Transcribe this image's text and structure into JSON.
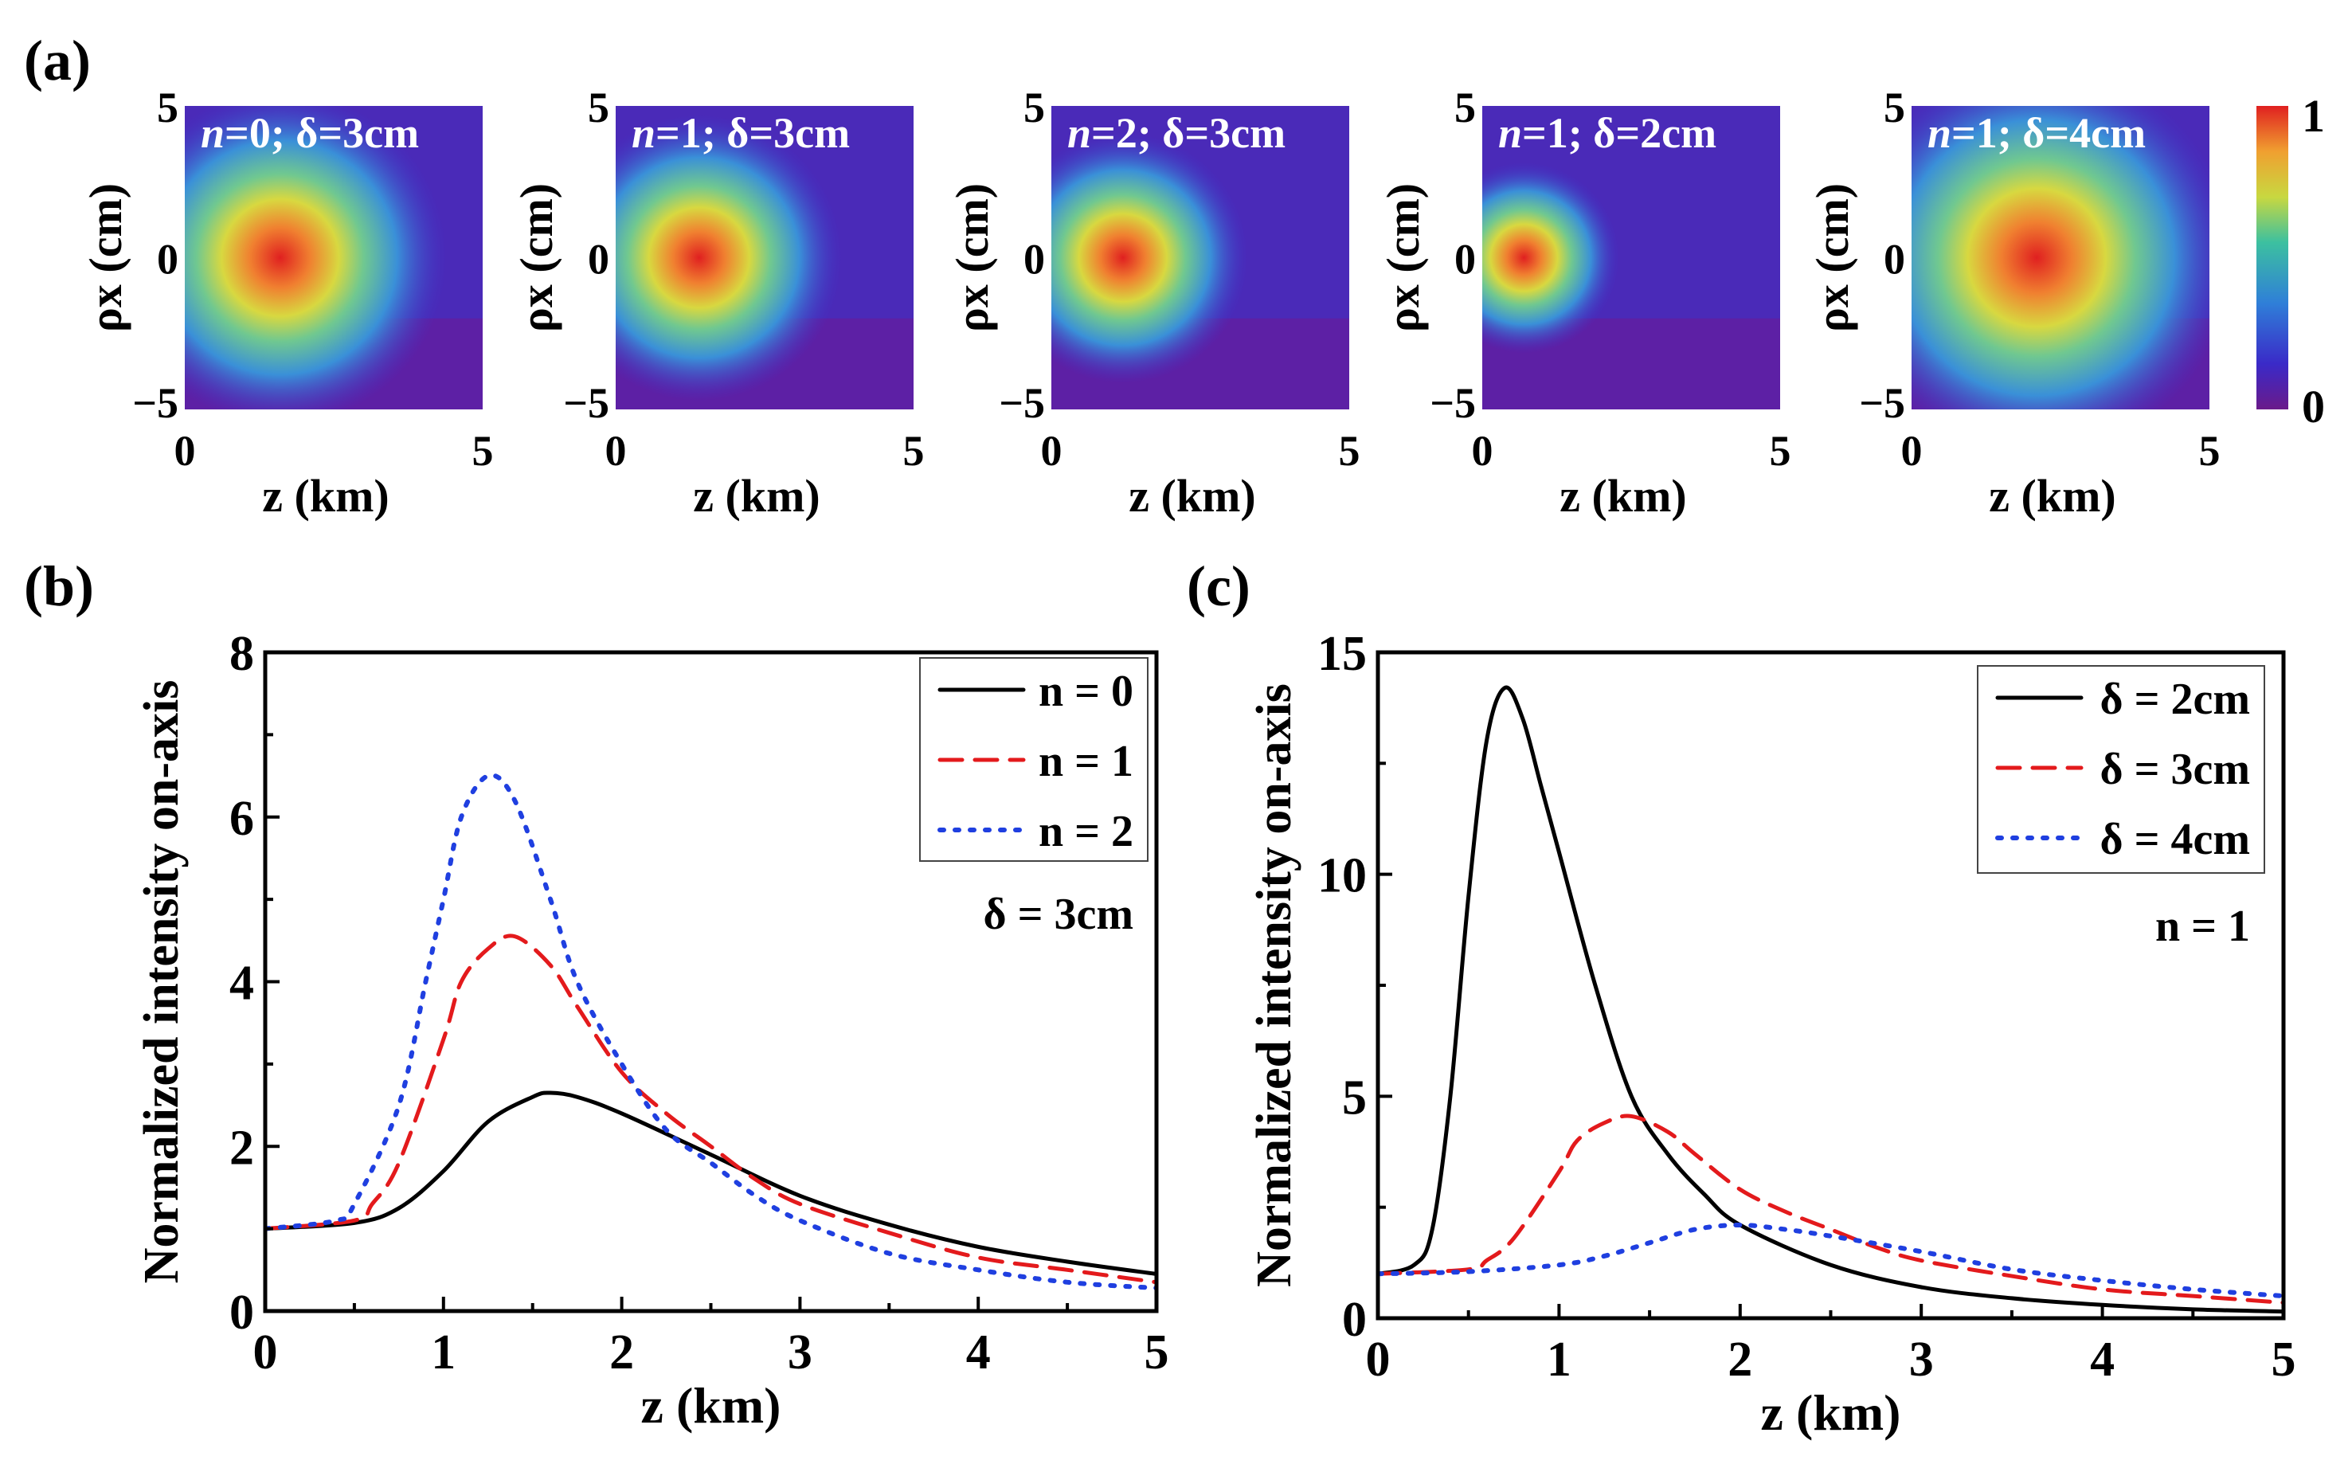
{
  "panel_labels": {
    "a": "(a)",
    "b": "(b)",
    "c": "(c)"
  },
  "colors": {
    "black": "#000000",
    "red": "#e31a1c",
    "blue": "#1f3fe0"
  },
  "chart_data": [
    {
      "type": "heatmap",
      "id": "a",
      "xlabel": "z (km)",
      "ylabel": "ρx (cm)",
      "xlim": [
        0,
        5
      ],
      "ylim": [
        -5,
        5
      ],
      "xticks": [
        "0",
        "5"
      ],
      "yticks": [
        "5",
        "0",
        "−5"
      ],
      "colorbar": {
        "min": "0",
        "max": "1"
      },
      "panels": [
        {
          "n_label": "n",
          "rest": "=0; δ=3cm",
          "peak_z": 1.6,
          "peak_rho": 0,
          "spread": 1.0
        },
        {
          "n_label": "n",
          "rest": "=1; δ=3cm",
          "peak_z": 1.4,
          "peak_rho": 0,
          "spread": 0.8
        },
        {
          "n_label": "n",
          "rest": "=2; δ=3cm",
          "peak_z": 1.2,
          "peak_rho": 0,
          "spread": 0.65
        },
        {
          "n_label": "n",
          "rest": "=1; δ=2cm",
          "peak_z": 0.7,
          "peak_rho": 0,
          "spread": 0.4
        },
        {
          "n_label": "n",
          "rest": "=1; δ=4cm",
          "peak_z": 2.1,
          "peak_rho": 0,
          "spread": 1.25
        }
      ]
    },
    {
      "type": "line",
      "id": "b",
      "xlabel": "z (km)",
      "ylabel": "Normalized intensity on-axis",
      "xlim": [
        0,
        5
      ],
      "ylim": [
        0,
        8
      ],
      "xticks": [
        0,
        1,
        2,
        3,
        4,
        5
      ],
      "yticks": [
        0,
        2,
        4,
        6,
        8
      ],
      "legend_position": "top-right",
      "annotation": "δ = 3cm",
      "series": [
        {
          "name": "n = 0",
          "style": "solid",
          "color": "#000000",
          "x": [
            0,
            0.5,
            0.75,
            1.0,
            1.25,
            1.5,
            1.6,
            1.75,
            2.0,
            2.5,
            3.0,
            3.5,
            4.0,
            4.5,
            5.0
          ],
          "y": [
            1.0,
            1.07,
            1.25,
            1.7,
            2.3,
            2.6,
            2.65,
            2.6,
            2.4,
            1.9,
            1.4,
            1.05,
            0.78,
            0.6,
            0.45
          ]
        },
        {
          "name": "n = 1",
          "style": "dashed",
          "color": "#e31a1c",
          "x": [
            0,
            0.5,
            0.6,
            0.75,
            1.0,
            1.1,
            1.25,
            1.4,
            1.6,
            1.75,
            2.0,
            2.25,
            2.5,
            2.75,
            3.0,
            3.5,
            4.0,
            4.5,
            5.0
          ],
          "y": [
            1.0,
            1.1,
            1.3,
            1.8,
            3.3,
            4.0,
            4.4,
            4.55,
            4.2,
            3.7,
            2.9,
            2.4,
            2.0,
            1.6,
            1.3,
            0.95,
            0.65,
            0.5,
            0.35
          ]
        },
        {
          "name": "n = 2",
          "style": "dotted",
          "color": "#1f3fe0",
          "x": [
            0,
            0.4,
            0.5,
            0.75,
            0.9,
            1.0,
            1.1,
            1.25,
            1.4,
            1.6,
            1.75,
            2.0,
            2.25,
            2.5,
            2.75,
            3.0,
            3.5,
            4.0,
            4.5,
            5.0
          ],
          "y": [
            1.0,
            1.1,
            1.3,
            2.5,
            4.0,
            5.0,
            6.0,
            6.5,
            6.2,
            5.0,
            4.0,
            3.0,
            2.2,
            1.8,
            1.4,
            1.1,
            0.7,
            0.5,
            0.35,
            0.28
          ]
        }
      ]
    },
    {
      "type": "line",
      "id": "c",
      "xlabel": "z (km)",
      "ylabel": "Normalized intensity on-axis",
      "xlim": [
        0,
        5
      ],
      "ylim": [
        0,
        15
      ],
      "xticks": [
        0,
        1,
        2,
        3,
        4,
        5
      ],
      "yticks": [
        0,
        5,
        10,
        15
      ],
      "legend_position": "top-right",
      "annotation": "n = 1",
      "series": [
        {
          "name": "δ = 2cm",
          "style": "solid",
          "color": "#000000",
          "x": [
            0,
            0.2,
            0.3,
            0.4,
            0.5,
            0.6,
            0.7,
            0.8,
            0.9,
            1.0,
            1.2,
            1.4,
            1.6,
            1.8,
            2.0,
            2.5,
            3.0,
            3.5,
            4.0,
            4.5,
            5.0
          ],
          "y": [
            1.0,
            1.2,
            2.0,
            5.0,
            9.5,
            13.0,
            14.2,
            13.5,
            12.0,
            10.5,
            7.5,
            5.0,
            3.7,
            2.8,
            2.1,
            1.2,
            0.7,
            0.45,
            0.3,
            0.2,
            0.15
          ]
        },
        {
          "name": "δ = 3cm",
          "style": "dashed",
          "color": "#e31a1c",
          "x": [
            0,
            0.5,
            0.6,
            0.75,
            1.0,
            1.1,
            1.25,
            1.4,
            1.6,
            1.75,
            2.0,
            2.25,
            2.5,
            2.75,
            3.0,
            3.5,
            4.0,
            4.5,
            5.0
          ],
          "y": [
            1.0,
            1.1,
            1.3,
            1.8,
            3.3,
            4.0,
            4.4,
            4.55,
            4.2,
            3.7,
            2.9,
            2.4,
            2.0,
            1.6,
            1.3,
            0.95,
            0.65,
            0.5,
            0.35
          ]
        },
        {
          "name": "δ = 4cm",
          "style": "dotted",
          "color": "#1f3fe0",
          "x": [
            0,
            0.5,
            1.0,
            1.25,
            1.5,
            1.75,
            2.0,
            2.25,
            2.5,
            3.0,
            3.5,
            4.0,
            4.5,
            5.0
          ],
          "y": [
            1.0,
            1.05,
            1.2,
            1.4,
            1.7,
            2.0,
            2.1,
            2.0,
            1.85,
            1.5,
            1.1,
            0.85,
            0.65,
            0.5
          ]
        }
      ]
    }
  ]
}
